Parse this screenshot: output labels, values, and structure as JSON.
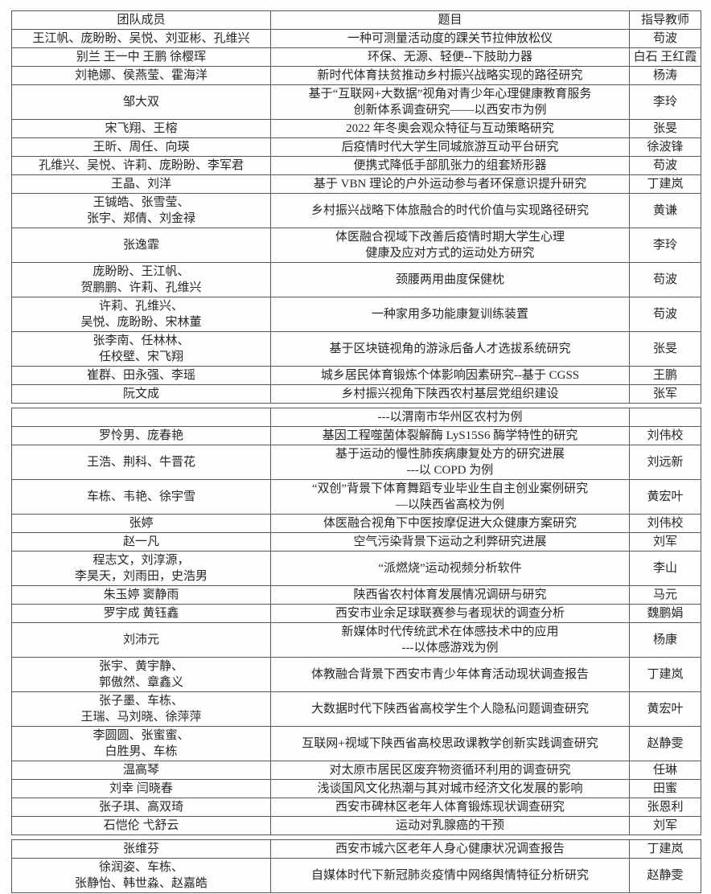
{
  "table": {
    "header": [
      "团队成员",
      "题目",
      "指导教师"
    ],
    "segments": [
      {
        "rows": [
          {
            "members_lines": [
              "王江帆、庞盼盼、吴悦、刘亚彬、孔维兴"
            ],
            "title_lines": [
              "一种可测量活动度的踝关节拉伸放松仪"
            ],
            "teacher": "苟波"
          },
          {
            "members_lines": [
              "别兰 王一中 王鹏 徐樱珲"
            ],
            "title_lines": [
              "环保、无源、轻便--下肢助力器"
            ],
            "teacher": "白石 王红霞"
          },
          {
            "members_lines": [
              "刘艳娜、侯燕莹、霍海洋"
            ],
            "title_lines": [
              "新时代体育扶贫推动乡村振兴战略实现的路径研究"
            ],
            "teacher": "杨涛"
          },
          {
            "members_lines": [
              "邹大双"
            ],
            "title_lines": [
              "基于“互联网+大数据”视角对青少年心理健康教育服务",
              "创新体系调查研究——以西安市为例"
            ],
            "teacher": "李玲"
          },
          {
            "members_lines": [
              "宋飞翔、王榕"
            ],
            "title_lines": [
              "2022 年冬奥会观众特征与互动策略研究"
            ],
            "teacher": "张旻"
          },
          {
            "members_lines": [
              "王昕、周任、向瑛"
            ],
            "title_lines": [
              "后疫情时代大学生同城旅游互动平台研究"
            ],
            "teacher": "徐波锋"
          },
          {
            "members_lines": [
              "孔维兴、吴悦、许莉、庞盼盼、李军君"
            ],
            "title_lines": [
              "便携式降低手部肌张力的组套矫形器"
            ],
            "teacher": "苟波"
          },
          {
            "members_lines": [
              "王晶、刘洋"
            ],
            "title_lines": [
              "基于 VBN 理论的户外运动参与者环保意识提升研究"
            ],
            "teacher": "丁建岚"
          },
          {
            "members_lines": [
              "王铖皓、张雪莹、",
              "张宇、郑倩、刘金禄"
            ],
            "title_lines": [
              "乡村振兴战略下体旅融合的时代价值与实现路径研究"
            ],
            "teacher": "黄谦"
          },
          {
            "members_lines": [
              "张逸霏"
            ],
            "title_lines": [
              "体医融合视域下改善后疫情时期大学生心理",
              "健康及应对方式的运动处方研究"
            ],
            "teacher": "李玲"
          },
          {
            "members_lines": [
              "庞盼盼、王江帆、",
              "贺鹏鹏、许莉、孔维兴"
            ],
            "title_lines": [
              "颈腰两用曲度保健枕"
            ],
            "teacher": "苟波"
          },
          {
            "members_lines": [
              "许莉、孔维兴、",
              "吴悦、庞盼盼、宋林董"
            ],
            "title_lines": [
              "一种家用多功能康复训练装置"
            ],
            "teacher": "苟波"
          },
          {
            "members_lines": [
              "张李南、任林林、",
              "任校壁、宋飞翔"
            ],
            "title_lines": [
              "基于区块链视角的游泳后备人才选拔系统研究"
            ],
            "teacher": "张旻"
          },
          {
            "members_lines": [
              "崔群、田永强、李瑶"
            ],
            "title_lines": [
              "城乡居民体育锻炼个体影响因素研究--基于 CGSS"
            ],
            "teacher": "王鹏"
          },
          {
            "members_lines": [
              "阮文成"
            ],
            "title_lines": [
              "乡村振兴视角下陕西农村基层党组织建设"
            ],
            "teacher": "张军"
          }
        ]
      },
      {
        "rows": [
          {
            "members_lines": [
              ""
            ],
            "title_lines": [
              "---以渭南市华州区农村为例"
            ],
            "teacher": ""
          },
          {
            "members_lines": [
              "罗怜男、庞春艳"
            ],
            "title_lines": [
              "基因工程噬菌体裂解酶 LyS15S6 酶学特性的研究"
            ],
            "teacher": "刘伟校"
          },
          {
            "members_lines": [
              "王浩、荆科、牛晋花"
            ],
            "title_lines": [
              "基于运动的慢性肺疾病康复处方的研究进展",
              "---以 COPD 为例"
            ],
            "teacher": "刘远新"
          },
          {
            "members_lines": [
              "车栋、韦艳、徐宇雪"
            ],
            "title_lines": [
              "“双创”背景下体育舞蹈专业毕业生自主创业案例研究",
              "—以陕西省高校为例"
            ],
            "teacher": "黄宏叶"
          },
          {
            "members_lines": [
              "张婷"
            ],
            "title_lines": [
              "体医融合视角下中医按摩促进大众健康方案研究"
            ],
            "teacher": "刘伟校"
          },
          {
            "members_lines": [
              "赵一凡"
            ],
            "title_lines": [
              "空气污染背景下运动之利弊研究进展"
            ],
            "teacher": "刘军"
          },
          {
            "members_lines": [
              "程志文，刘淳源，",
              "李昊天，刘雨田，史浩男"
            ],
            "title_lines": [
              "“派燃烧”运动视频分析软件"
            ],
            "teacher": "李山"
          },
          {
            "members_lines": [
              "朱玉婷 窦静雨"
            ],
            "title_lines": [
              "陕西省农村体育发展情况调研与研究"
            ],
            "teacher": "马元"
          },
          {
            "members_lines": [
              "罗宇成 黄钰鑫"
            ],
            "title_lines": [
              "西安市业余足球联赛参与者现状的调查分析"
            ],
            "teacher": "魏鹏娟"
          },
          {
            "members_lines": [
              "刘沛元"
            ],
            "title_lines": [
              "新媒体时代传统武术在体感技术中的应用",
              "---以体感游戏为例"
            ],
            "teacher": "杨康"
          },
          {
            "members_lines": [
              "张宇、黄宇静、",
              "郭傲然、章鑫义"
            ],
            "title_lines": [
              "体教融合背景下西安市青少年体育活动现状调查报告"
            ],
            "teacher": "丁建岚"
          },
          {
            "members_lines": [
              "张子墨、车栋、",
              "王瑞、马刘晓、徐萍萍"
            ],
            "title_lines": [
              "大数据时代下陕西省高校学生个人隐私问题调查研究"
            ],
            "teacher": "黄宏叶"
          },
          {
            "members_lines": [
              "李圆圆、张蜜蜜、",
              "白胜男、车栋"
            ],
            "title_lines": [
              "互联网+视域下陕西省高校思政课教学创新实践调查研究"
            ],
            "teacher": "赵静雯"
          },
          {
            "members_lines": [
              "温高琴"
            ],
            "title_lines": [
              "对太原市居民区废弃物资循环利用的调查研究"
            ],
            "teacher": "任琳"
          },
          {
            "members_lines": [
              "刘幸 闫晓春"
            ],
            "title_lines": [
              "浅谈国风文化热潮与其对城市经济文化发展的影响"
            ],
            "teacher": "田蜜"
          },
          {
            "members_lines": [
              "张子琪、高双琦"
            ],
            "title_lines": [
              "西安市碑林区老年人体育锻炼现状调查研究"
            ],
            "teacher": "张恩利"
          },
          {
            "members_lines": [
              "石恺伦 弋舒云"
            ],
            "title_lines": [
              "运动对乳腺癌的干预"
            ],
            "teacher": "刘军"
          }
        ]
      },
      {
        "rows": [
          {
            "members_lines": [
              "张维芬"
            ],
            "title_lines": [
              "西安市城六区老年人身心健康状况调查报告"
            ],
            "teacher": "丁建岚"
          },
          {
            "members_lines": [
              "徐润姿、车栋、",
              "张静怡、韩世淼、赵嘉皓"
            ],
            "title_lines": [
              "自媒体时代下新冠肺炎疫情中网络舆情特征分析研究"
            ],
            "teacher": "赵静雯"
          }
        ]
      }
    ]
  }
}
